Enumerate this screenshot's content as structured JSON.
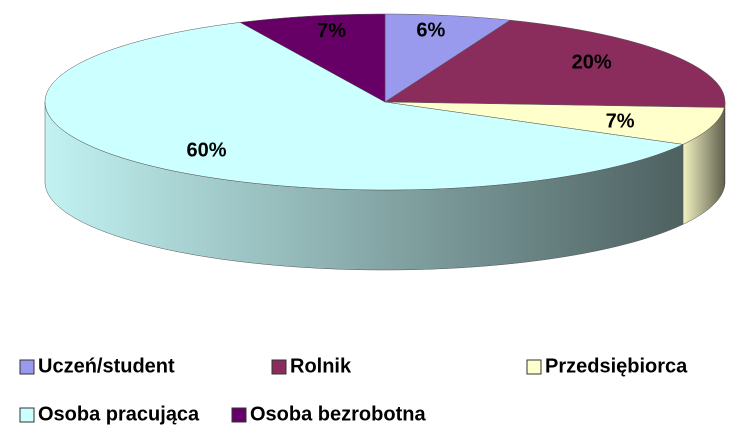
{
  "chart_data": {
    "type": "pie",
    "categories": [
      "Uczeń/student",
      "Rolnik",
      "Przedsiębiorca",
      "Osoba pracująca",
      "Osoba bezrobotna"
    ],
    "values": [
      6,
      20,
      7,
      60,
      7
    ],
    "value_labels": [
      "6%",
      "20%",
      "7%",
      "60%",
      "7%"
    ],
    "colors": [
      "#9999ee",
      "#8b2d5c",
      "#ffffcc",
      "#ccffff",
      "#660066"
    ],
    "legend": "bottom"
  }
}
